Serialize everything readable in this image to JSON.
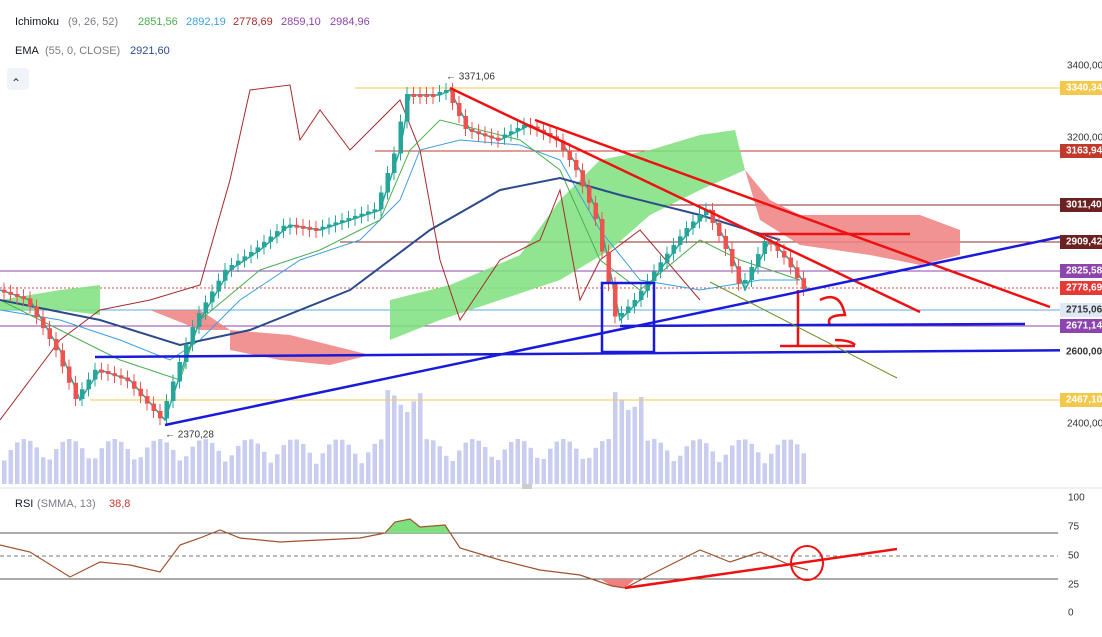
{
  "header": {
    "ichimoku": {
      "name": "Ichimoku",
      "params": "(9, 26, 52)",
      "values": [
        "2851,56",
        "2892,19",
        "2778,69",
        "2859,10",
        "2984,96"
      ]
    },
    "ema": {
      "name": "EMA",
      "params": "(55, 0, CLOSE)",
      "value": "2921,60"
    }
  },
  "annotations": {
    "high": "← 3371,06",
    "low": "← 2370,28"
  },
  "price_axis": {
    "ticks": [
      "3400,00",
      "3200,00",
      "2400,00"
    ],
    "labels": [
      "3340,34",
      "3163,94",
      "3011,40",
      "2909,42",
      "2825,58",
      "2778,69",
      "2715,06",
      "2671,14",
      "2600,00",
      "2467,10"
    ]
  },
  "rsi": {
    "name": "RSI",
    "params": "(SMMA, 13)",
    "value": "38,8",
    "ticks": [
      "100",
      "75",
      "50",
      "25",
      "0"
    ]
  }
}
